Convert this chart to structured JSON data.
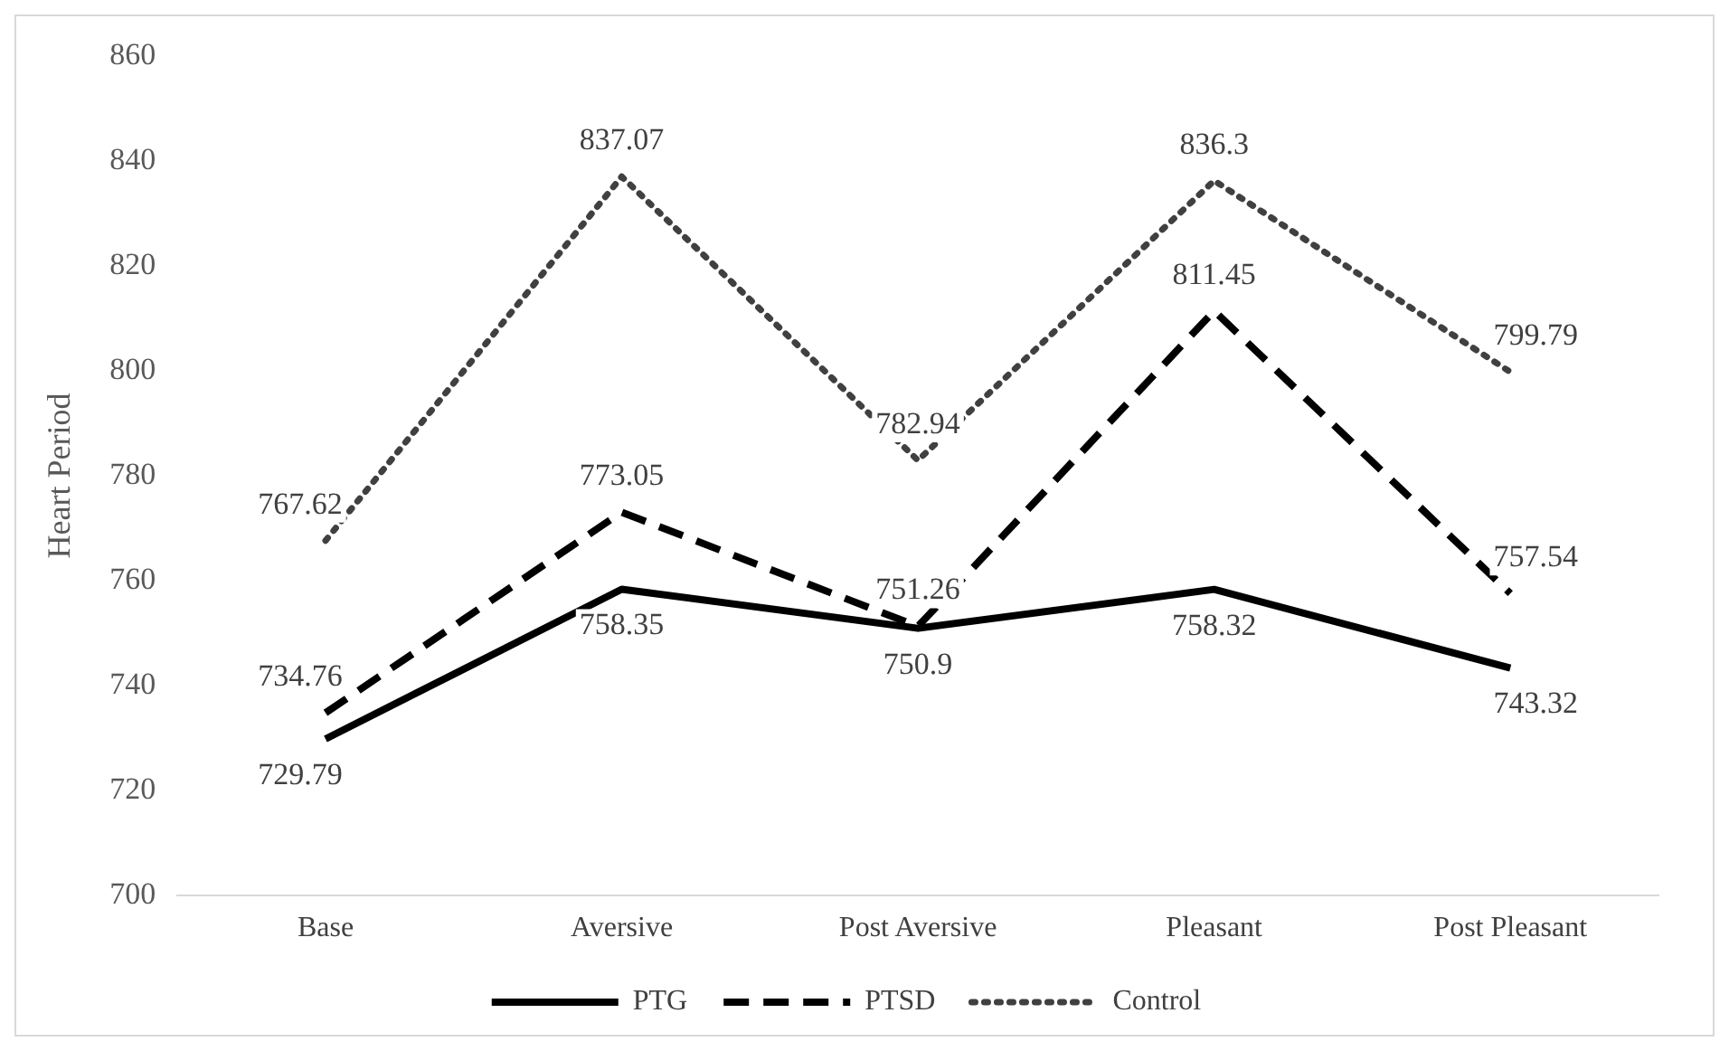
{
  "chart_data": {
    "type": "line",
    "ylabel": "Heart Period",
    "categories": [
      "Base",
      "Aversive",
      "Post Aversive",
      "Pleasant",
      "Post Pleasant"
    ],
    "series": [
      {
        "name": "PTG",
        "color": "#000000",
        "line_style": "solid",
        "values": [
          729.79,
          758.35,
          750.9,
          758.32,
          743.32
        ]
      },
      {
        "name": "PTSD",
        "color": "#000000",
        "line_style": "dashed",
        "values": [
          734.76,
          773.05,
          751.26,
          811.45,
          757.54
        ]
      },
      {
        "name": "Control",
        "color": "#404040",
        "line_style": "dotted",
        "values": [
          767.62,
          837.07,
          782.94,
          836.3,
          799.79
        ]
      }
    ],
    "ylim": [
      700,
      860
    ],
    "yticks": [
      700,
      720,
      740,
      760,
      780,
      800,
      820,
      840,
      860
    ],
    "grid": false,
    "legend": "bottom",
    "marker": "none",
    "data_labels": true
  }
}
